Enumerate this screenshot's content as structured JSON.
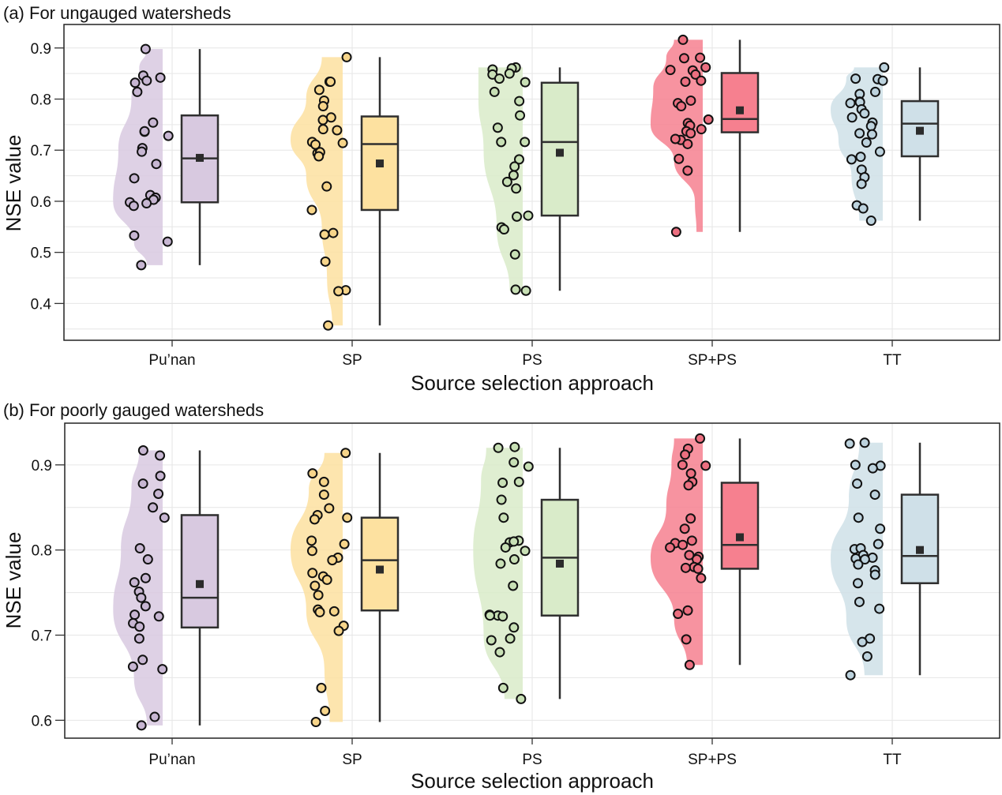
{
  "chart_data": [
    {
      "type": "raincloud",
      "panel": "a",
      "title": "(a) For ungauged watersheds",
      "xlabel": "Source selection approach",
      "ylabel": "NSE value",
      "ylim": [
        0.328,
        0.946
      ],
      "yticks": [
        0.4,
        0.5,
        0.6,
        0.7,
        0.8,
        0.9
      ],
      "ytick_labels": [
        "0.4",
        "0.5",
        "0.6",
        "0.7",
        "0.8",
        "0.9"
      ],
      "grid": true,
      "categories": [
        "Pu’nan",
        "SP",
        "PS",
        "SP+PS",
        "TT"
      ],
      "colors": [
        "#d8c9e0",
        "#fde1a0",
        "#d9ebc9",
        "#f6808f",
        "#cfe0e8"
      ],
      "groups": [
        {
          "name": "Pu’nan",
          "min": 0.475,
          "q1": 0.598,
          "median": 0.684,
          "q3": 0.768,
          "max": 0.898,
          "mean": 0.685,
          "points": [
            0.898,
            0.846,
            0.836,
            0.842,
            0.832,
            0.814,
            0.754,
            0.736,
            0.737,
            0.728,
            0.704,
            0.697,
            0.673,
            0.645,
            0.612,
            0.607,
            0.603,
            0.598,
            0.596,
            0.591,
            0.533,
            0.521,
            0.475
          ],
          "density": [
            [
              0.475,
              0.3
            ],
            [
              0.52,
              0.55
            ],
            [
              0.6,
              0.95
            ],
            [
              0.7,
              0.85
            ],
            [
              0.8,
              0.6
            ],
            [
              0.86,
              0.45
            ],
            [
              0.898,
              0.3
            ]
          ]
        },
        {
          "name": "SP",
          "min": 0.357,
          "q1": 0.583,
          "median": 0.712,
          "q3": 0.766,
          "max": 0.882,
          "mean": 0.674,
          "points": [
            0.882,
            0.834,
            0.834,
            0.818,
            0.797,
            0.786,
            0.764,
            0.759,
            0.741,
            0.739,
            0.716,
            0.711,
            0.714,
            0.694,
            0.696,
            0.688,
            0.629,
            0.583,
            0.538,
            0.535,
            0.482,
            0.426,
            0.424,
            0.357
          ],
          "density": [
            [
              0.357,
              0.2
            ],
            [
              0.45,
              0.3
            ],
            [
              0.55,
              0.4
            ],
            [
              0.65,
              0.7
            ],
            [
              0.72,
              1.0
            ],
            [
              0.8,
              0.7
            ],
            [
              0.882,
              0.4
            ]
          ]
        },
        {
          "name": "PS",
          "min": 0.425,
          "q1": 0.572,
          "median": 0.716,
          "q3": 0.832,
          "max": 0.862,
          "mean": 0.695,
          "points": [
            0.862,
            0.86,
            0.858,
            0.85,
            0.848,
            0.84,
            0.833,
            0.814,
            0.796,
            0.768,
            0.744,
            0.716,
            0.716,
            0.682,
            0.668,
            0.651,
            0.638,
            0.625,
            0.572,
            0.57,
            0.549,
            0.545,
            0.496,
            0.427,
            0.425
          ],
          "density": [
            [
              0.425,
              0.25
            ],
            [
              0.55,
              0.5
            ],
            [
              0.7,
              0.75
            ],
            [
              0.8,
              0.85
            ],
            [
              0.862,
              0.85
            ]
          ]
        },
        {
          "name": "SP+PS",
          "min": 0.54,
          "q1": 0.735,
          "median": 0.761,
          "q3": 0.851,
          "max": 0.916,
          "mean": 0.778,
          "points": [
            0.916,
            0.88,
            0.881,
            0.862,
            0.856,
            0.857,
            0.848,
            0.836,
            0.834,
            0.797,
            0.792,
            0.786,
            0.76,
            0.753,
            0.748,
            0.741,
            0.737,
            0.733,
            0.72,
            0.722,
            0.712,
            0.683,
            0.66,
            0.54
          ],
          "density": [
            [
              0.54,
              0.12
            ],
            [
              0.6,
              0.15
            ],
            [
              0.68,
              0.55
            ],
            [
              0.75,
              1.0
            ],
            [
              0.82,
              0.95
            ],
            [
              0.88,
              0.7
            ],
            [
              0.916,
              0.55
            ]
          ]
        },
        {
          "name": "TT",
          "min": 0.562,
          "q1": 0.688,
          "median": 0.752,
          "q3": 0.796,
          "max": 0.862,
          "mean": 0.738,
          "points": [
            0.862,
            0.839,
            0.84,
            0.836,
            0.814,
            0.81,
            0.795,
            0.794,
            0.792,
            0.78,
            0.772,
            0.764,
            0.754,
            0.747,
            0.733,
            0.731,
            0.715,
            0.697,
            0.687,
            0.682,
            0.662,
            0.647,
            0.634,
            0.592,
            0.586,
            0.562
          ],
          "density": [
            [
              0.562,
              0.45
            ],
            [
              0.65,
              0.6
            ],
            [
              0.72,
              0.85
            ],
            [
              0.78,
              1.0
            ],
            [
              0.84,
              0.7
            ],
            [
              0.862,
              0.55
            ]
          ]
        }
      ]
    },
    {
      "type": "raincloud",
      "panel": "b",
      "title": "(b) For poorly gauged watersheds",
      "xlabel": "Source selection approach",
      "ylabel": "NSE value",
      "ylim": [
        0.579,
        0.949
      ],
      "yticks": [
        0.6,
        0.7,
        0.8,
        0.9
      ],
      "ytick_labels": [
        "0.6",
        "0.7",
        "0.8",
        "0.9"
      ],
      "grid": true,
      "categories": [
        "Pu’nan",
        "SP",
        "PS",
        "SP+PS",
        "TT"
      ],
      "colors": [
        "#d8c9e0",
        "#fde1a0",
        "#d9ebc9",
        "#f6808f",
        "#cfe0e8"
      ],
      "groups": [
        {
          "name": "Pu’nan",
          "min": 0.594,
          "q1": 0.709,
          "median": 0.744,
          "q3": 0.841,
          "max": 0.917,
          "mean": 0.76,
          "points": [
            0.917,
            0.911,
            0.887,
            0.878,
            0.866,
            0.85,
            0.838,
            0.802,
            0.789,
            0.767,
            0.762,
            0.751,
            0.744,
            0.734,
            0.724,
            0.722,
            0.714,
            0.71,
            0.696,
            0.671,
            0.663,
            0.66,
            0.604,
            0.594
          ],
          "density": [
            [
              0.594,
              0.3
            ],
            [
              0.65,
              0.55
            ],
            [
              0.73,
              0.95
            ],
            [
              0.8,
              0.8
            ],
            [
              0.87,
              0.6
            ],
            [
              0.917,
              0.45
            ]
          ]
        },
        {
          "name": "SP",
          "min": 0.598,
          "q1": 0.729,
          "median": 0.788,
          "q3": 0.838,
          "max": 0.914,
          "mean": 0.777,
          "points": [
            0.914,
            0.89,
            0.88,
            0.865,
            0.849,
            0.841,
            0.838,
            0.836,
            0.811,
            0.807,
            0.799,
            0.791,
            0.788,
            0.773,
            0.769,
            0.765,
            0.758,
            0.747,
            0.73,
            0.728,
            0.727,
            0.711,
            0.705,
            0.638,
            0.611,
            0.598
          ],
          "density": [
            [
              0.598,
              0.25
            ],
            [
              0.66,
              0.35
            ],
            [
              0.73,
              0.7
            ],
            [
              0.8,
              1.0
            ],
            [
              0.87,
              0.65
            ],
            [
              0.914,
              0.35
            ]
          ]
        },
        {
          "name": "PS",
          "min": 0.625,
          "q1": 0.723,
          "median": 0.791,
          "q3": 0.859,
          "max": 0.92,
          "mean": 0.784,
          "points": [
            0.92,
            0.921,
            0.903,
            0.898,
            0.88,
            0.879,
            0.859,
            0.838,
            0.811,
            0.809,
            0.81,
            0.803,
            0.799,
            0.789,
            0.784,
            0.758,
            0.724,
            0.723,
            0.722,
            0.723,
            0.709,
            0.696,
            0.694,
            0.68,
            0.638,
            0.625
          ],
          "density": [
            [
              0.625,
              0.35
            ],
            [
              0.7,
              0.75
            ],
            [
              0.8,
              0.95
            ],
            [
              0.88,
              0.8
            ],
            [
              0.92,
              0.7
            ]
          ]
        },
        {
          "name": "SP+PS",
          "min": 0.665,
          "q1": 0.778,
          "median": 0.806,
          "q3": 0.879,
          "max": 0.931,
          "mean": 0.815,
          "points": [
            0.931,
            0.919,
            0.912,
            0.899,
            0.9,
            0.89,
            0.88,
            0.876,
            0.837,
            0.825,
            0.811,
            0.808,
            0.806,
            0.803,
            0.794,
            0.792,
            0.789,
            0.78,
            0.779,
            0.778,
            0.767,
            0.729,
            0.725,
            0.695,
            0.665
          ],
          "density": [
            [
              0.665,
              0.3
            ],
            [
              0.72,
              0.55
            ],
            [
              0.79,
              1.0
            ],
            [
              0.85,
              0.7
            ],
            [
              0.9,
              0.6
            ],
            [
              0.931,
              0.55
            ]
          ]
        },
        {
          "name": "TT",
          "min": 0.653,
          "q1": 0.761,
          "median": 0.793,
          "q3": 0.865,
          "max": 0.926,
          "mean": 0.8,
          "points": [
            0.926,
            0.925,
            0.9,
            0.899,
            0.896,
            0.878,
            0.865,
            0.838,
            0.825,
            0.807,
            0.801,
            0.802,
            0.794,
            0.791,
            0.79,
            0.789,
            0.783,
            0.776,
            0.771,
            0.761,
            0.739,
            0.731,
            0.696,
            0.692,
            0.675,
            0.653
          ],
          "density": [
            [
              0.653,
              0.35
            ],
            [
              0.72,
              0.7
            ],
            [
              0.79,
              1.0
            ],
            [
              0.86,
              0.65
            ],
            [
              0.926,
              0.45
            ]
          ]
        }
      ]
    }
  ]
}
